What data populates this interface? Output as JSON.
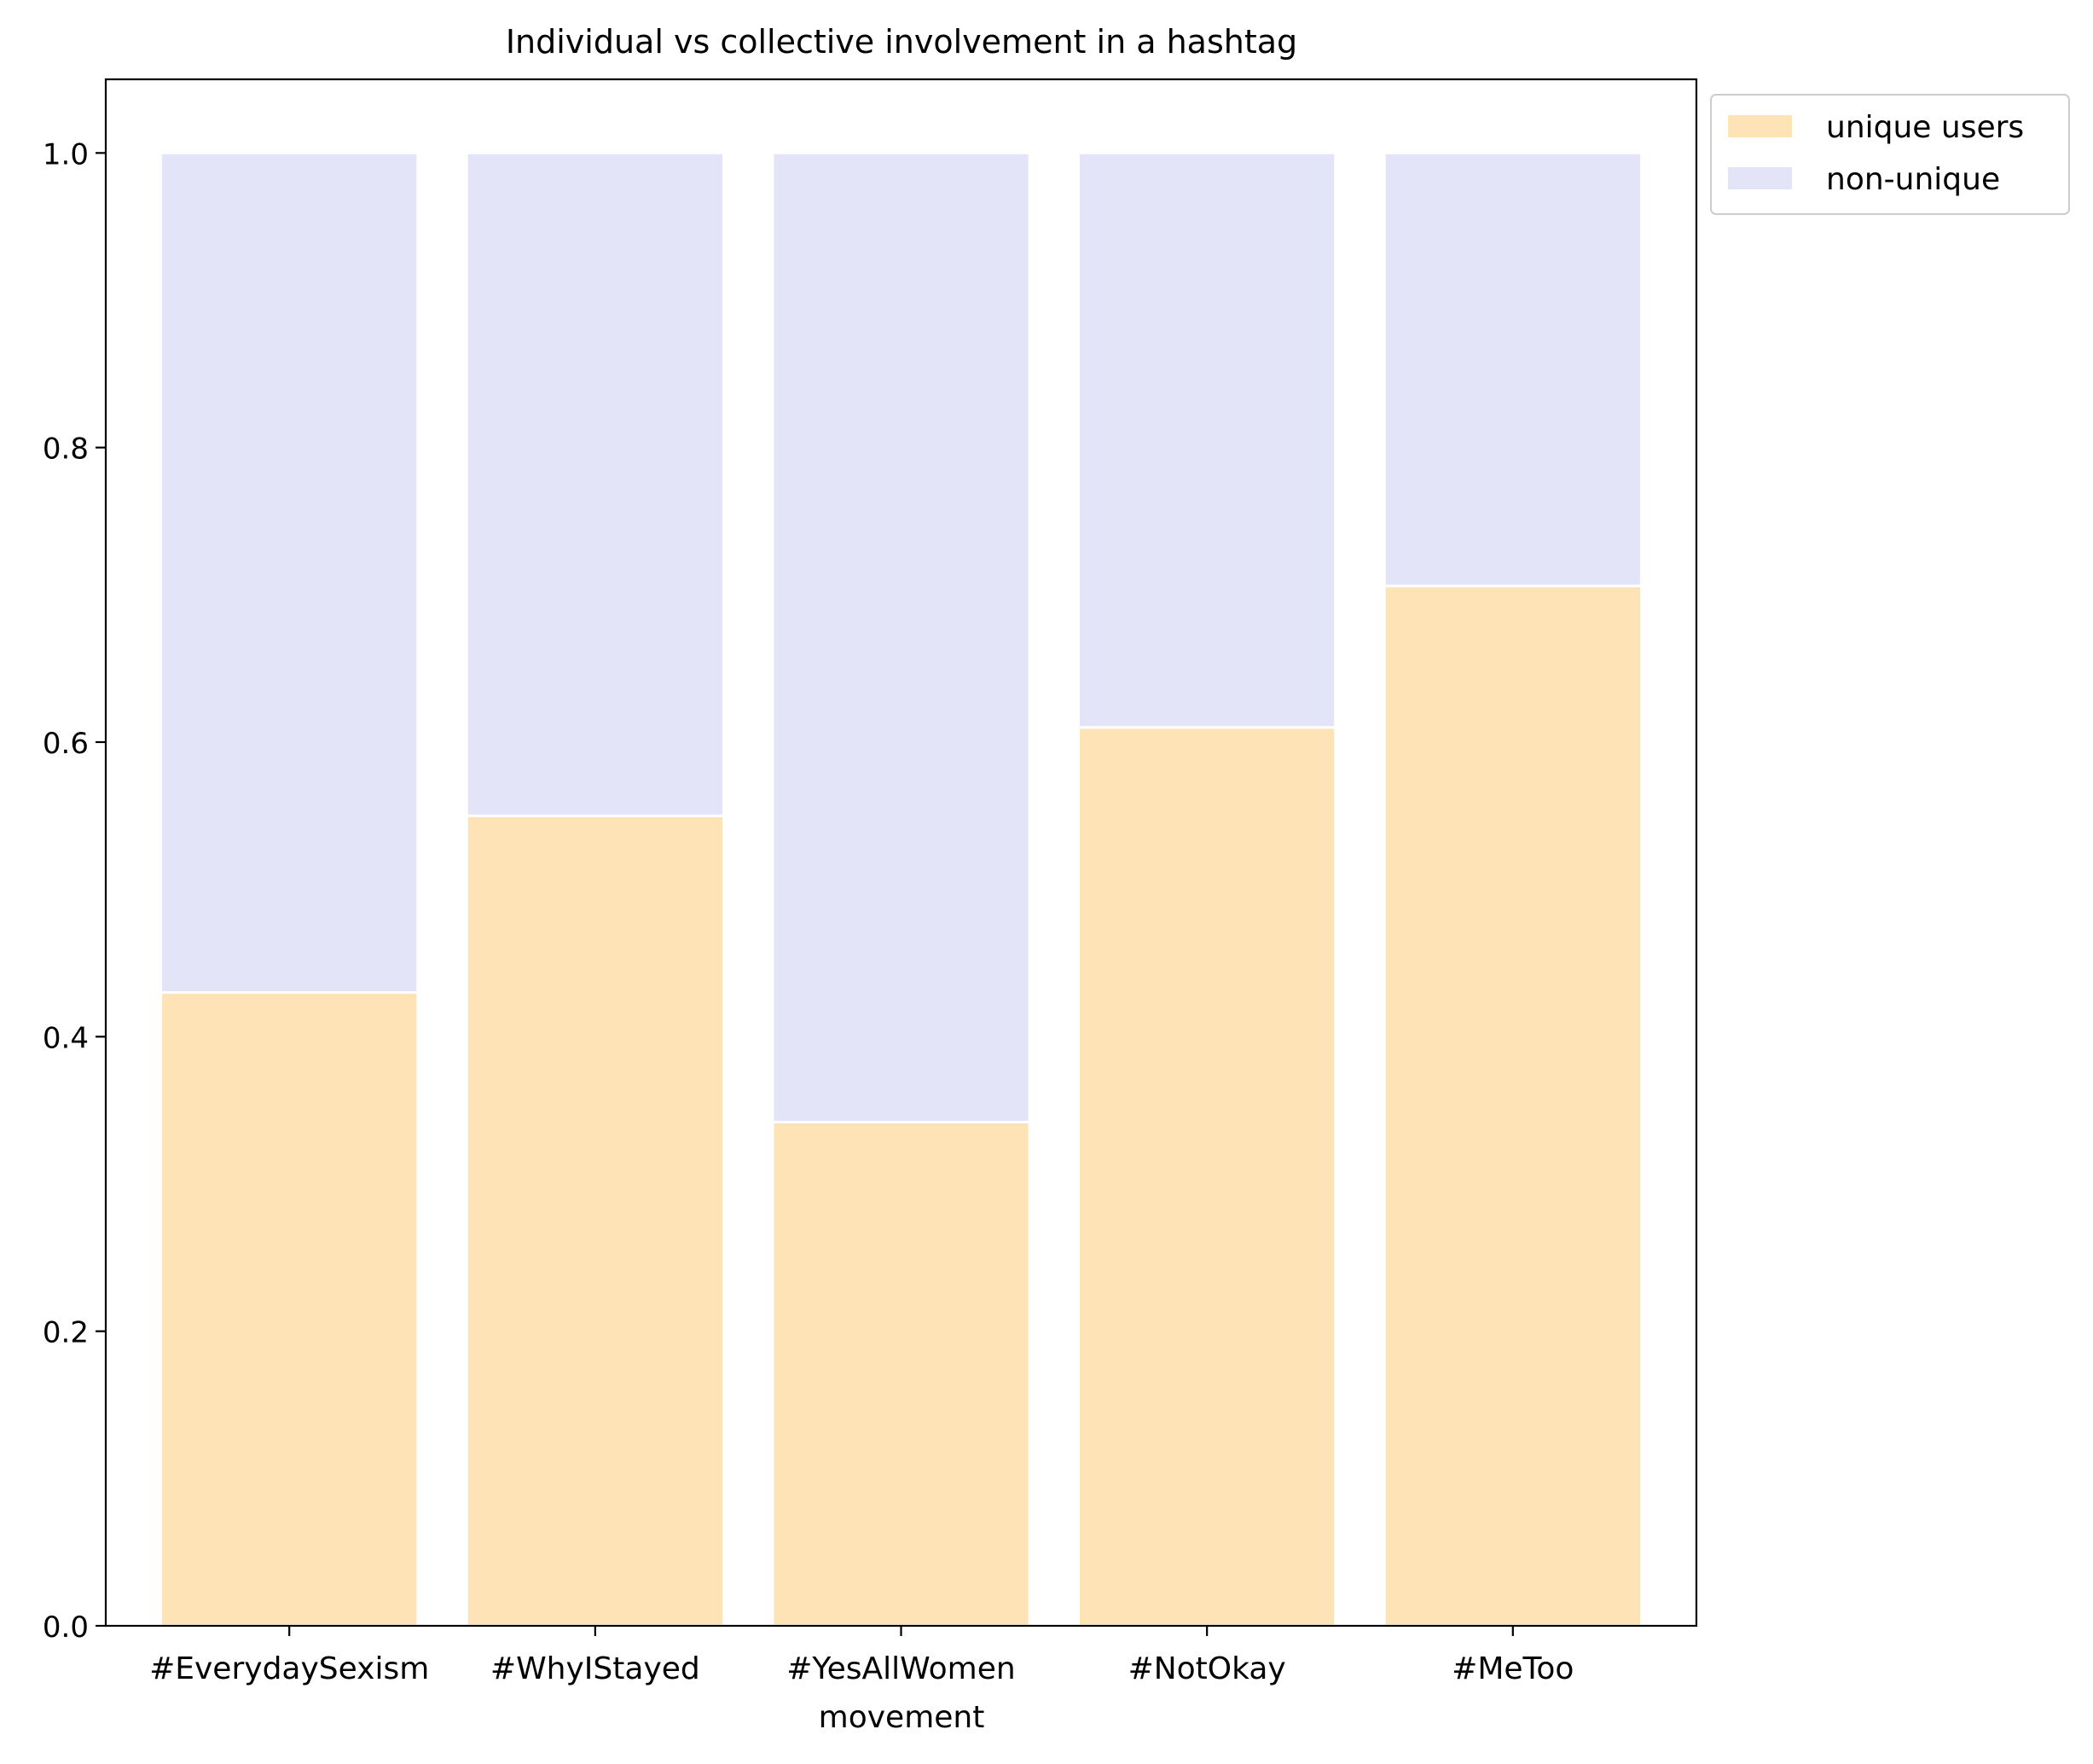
{
  "chart_data": {
    "type": "bar",
    "stacked": true,
    "title": "Individual vs collective involvement in a hashtag",
    "xlabel": "movement",
    "ylabel": "",
    "categories": [
      "#EverydaySexism",
      "#WhyIStayed",
      "#YesAllWomen",
      "#NotOkay",
      "#MeToo"
    ],
    "series": [
      {
        "name": "unique users",
        "color": "#fde3b6",
        "values": [
          0.43,
          0.55,
          0.342,
          0.61,
          0.706
        ]
      },
      {
        "name": "non-unique",
        "color": "#e4e4f8",
        "values": [
          0.57,
          0.45,
          0.658,
          0.39,
          0.294
        ]
      }
    ],
    "ylim": [
      0,
      1.05
    ],
    "yticks": [
      "0.0",
      "0.2",
      "0.4",
      "0.6",
      "0.8",
      "1.0"
    ],
    "legend_position": "outside-top-right",
    "grid": false
  }
}
